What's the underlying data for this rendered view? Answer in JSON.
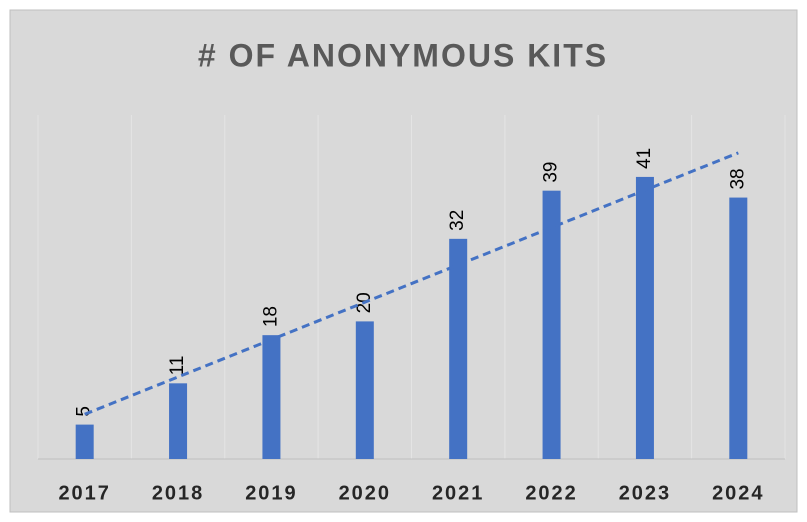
{
  "chart_data": {
    "type": "bar",
    "title": "# OF ANONYMOUS KITS",
    "categories": [
      "2017",
      "2018",
      "2019",
      "2020",
      "2021",
      "2022",
      "2023",
      "2024"
    ],
    "values": [
      5,
      11,
      18,
      20,
      32,
      39,
      41,
      38
    ],
    "color": "#4472c4",
    "ylim": [
      0,
      50
    ],
    "grid": true,
    "trendline": true
  }
}
